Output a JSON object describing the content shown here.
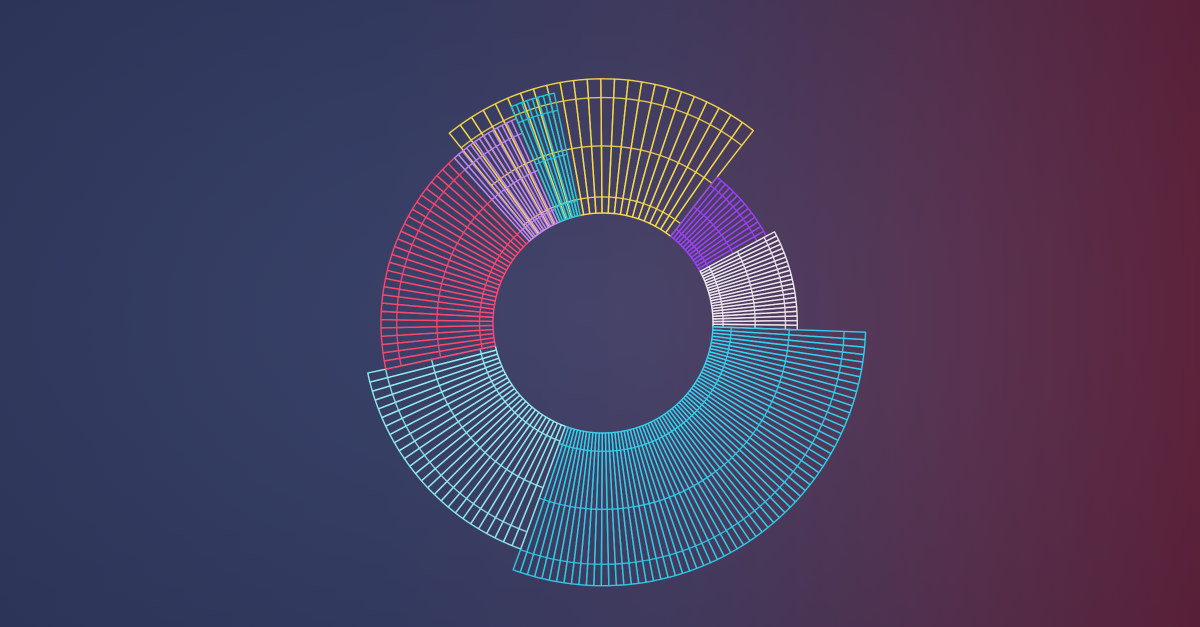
{
  "chart_data": {
    "type": "radial-bar",
    "grid": false,
    "legend": "none",
    "title": "",
    "segments": [
      {
        "color": "#ffe04a",
        "bars": 24,
        "outer_ratio": 1.32,
        "start_deg": -39,
        "end_deg": 38
      },
      {
        "color": "#a13dff",
        "bars": 14,
        "outer_ratio": 1.0,
        "start_deg": 38,
        "end_deg": 62
      },
      {
        "color": "#f3eaf2",
        "bars": 22,
        "outer_ratio": 1.05,
        "start_deg": 62,
        "end_deg": 92
      },
      {
        "color": "#2fd6f4",
        "bars": 66,
        "outer_ratio": 1.42,
        "start_deg": 92,
        "end_deg": 200
      },
      {
        "color": "#92f2f6",
        "bars": 26,
        "outer_ratio": 1.3,
        "start_deg": 200,
        "end_deg": 258
      },
      {
        "color": "#ff4470",
        "bars": 28,
        "outer_ratio": 1.2,
        "start_deg": 258,
        "end_deg": 318
      },
      {
        "color": "#c98af9",
        "bars": 14,
        "outer_ratio": 1.2,
        "start_deg": 318,
        "end_deg": 337
      },
      {
        "color": "#1ed0e6",
        "bars": 8,
        "outer_ratio": 1.27,
        "start_deg": 337,
        "end_deg": 348
      }
    ]
  }
}
